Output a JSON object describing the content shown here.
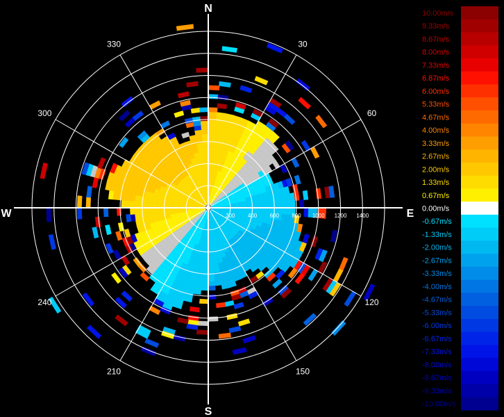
{
  "chart_data": {
    "type": "heatmap",
    "subtype": "polar-radial-velocity-ppi",
    "compass": {
      "north": "N",
      "south": "S",
      "east": "E",
      "west": "W"
    },
    "azimuth_labels": [
      "30",
      "60",
      "120",
      "150",
      "210",
      "240",
      "300",
      "330"
    ],
    "range_labels": [
      "200",
      "400",
      "600",
      "800",
      "1000",
      "1200",
      "1400"
    ],
    "range_max": 1600,
    "colorbar": {
      "unit": "m/s",
      "levels": [
        {
          "label": "10.00m/s",
          "color": "#8b0000"
        },
        {
          "label": "9.33m/s",
          "color": "#a00000"
        },
        {
          "label": "8.67m/s",
          "color": "#b80000"
        },
        {
          "label": "8.00m/s",
          "color": "#d00000"
        },
        {
          "label": "7.33m/s",
          "color": "#e80000"
        },
        {
          "label": "6.87m/s",
          "color": "#ff1000"
        },
        {
          "label": "6.00m/s",
          "color": "#ff3000"
        },
        {
          "label": "5.33m/s",
          "color": "#ff5000"
        },
        {
          "label": "4.67m/s",
          "color": "#ff6a00"
        },
        {
          "label": "4.00m/s",
          "color": "#ff8400"
        },
        {
          "label": "3.33m/s",
          "color": "#ff9e00"
        },
        {
          "label": "2.67m/s",
          "color": "#ffb400"
        },
        {
          "label": "2.00m/s",
          "color": "#ffc800"
        },
        {
          "label": "1.33m/s",
          "color": "#ffdc00"
        },
        {
          "label": "0.67m/s",
          "color": "#fff000"
        },
        {
          "label": "0.00m/s",
          "color": "#ffffff"
        },
        {
          "label": "-0.67m/s",
          "color": "#00e0ff"
        },
        {
          "label": "-1.33m/s",
          "color": "#00ccf8"
        },
        {
          "label": "-2.00m/s",
          "color": "#00b8f0"
        },
        {
          "label": "-2.67m/s",
          "color": "#00a2ee"
        },
        {
          "label": "-3.33m/s",
          "color": "#008ce8"
        },
        {
          "label": "-4.00m/s",
          "color": "#0076e4"
        },
        {
          "label": "-4.67m/s",
          "color": "#0060e0"
        },
        {
          "label": "-5.33m/s",
          "color": "#004ce0"
        },
        {
          "label": "-6.00m/s",
          "color": "#0038e4"
        },
        {
          "label": "-6.67m/s",
          "color": "#0024e8"
        },
        {
          "label": "-7.33m/s",
          "color": "#0014e8"
        },
        {
          "label": "-8.00m/s",
          "color": "#0008d8"
        },
        {
          "label": "-8.67m/s",
          "color": "#0000c0"
        },
        {
          "label": "-9.33m/s",
          "color": "#0000a8"
        },
        {
          "label": "-10.00m/s",
          "color": "#000090"
        }
      ]
    },
    "pattern": {
      "approaching_color": "#3ab0e4",
      "receding_color": "#f0b800",
      "no_data_color": "#c8c8c8",
      "zero_line_rotation_deg": 45
    },
    "grid": true
  }
}
